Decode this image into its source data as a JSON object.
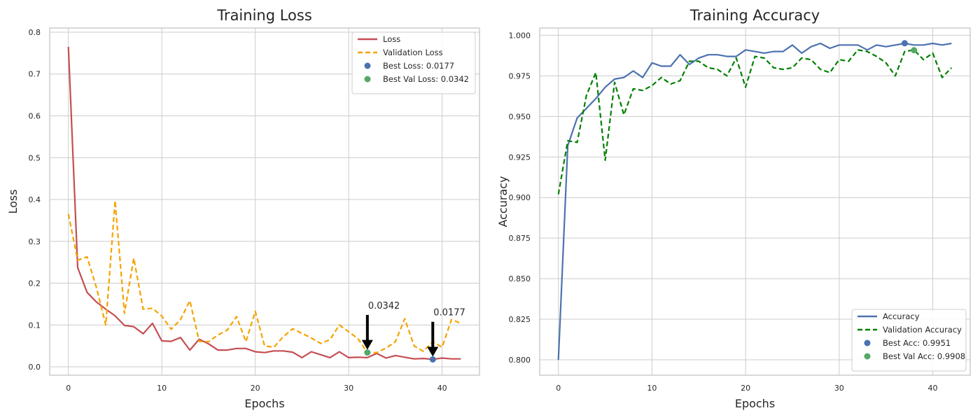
{
  "chart_data": [
    {
      "type": "line",
      "title": "Training Loss",
      "xlabel": "Epochs",
      "ylabel": "Loss",
      "xlim": [
        -2,
        44
      ],
      "ylim": [
        -0.02,
        0.81
      ],
      "xticks": [
        0,
        10,
        20,
        30,
        40
      ],
      "yticks": [
        0.0,
        0.1,
        0.2,
        0.3,
        0.4,
        0.5,
        0.6,
        0.7,
        0.8
      ],
      "ytick_decimals": 1,
      "grid": true,
      "legend_position": "top-right",
      "series": [
        {
          "name": "Loss",
          "color": "#c44e52",
          "style": "solid",
          "x": [
            0,
            1,
            2,
            3,
            4,
            5,
            6,
            7,
            8,
            9,
            10,
            11,
            12,
            13,
            14,
            15,
            16,
            17,
            18,
            19,
            20,
            21,
            22,
            23,
            24,
            25,
            26,
            27,
            28,
            29,
            30,
            31,
            32,
            33,
            34,
            35,
            36,
            37,
            38,
            39,
            40,
            41,
            42
          ],
          "values": [
            0.765,
            0.237,
            0.178,
            0.155,
            0.138,
            0.122,
            0.099,
            0.096,
            0.079,
            0.104,
            0.062,
            0.061,
            0.07,
            0.04,
            0.066,
            0.055,
            0.04,
            0.04,
            0.044,
            0.044,
            0.036,
            0.034,
            0.038,
            0.038,
            0.035,
            0.022,
            0.036,
            0.029,
            0.022,
            0.036,
            0.022,
            0.023,
            0.022,
            0.032,
            0.021,
            0.027,
            0.023,
            0.019,
            0.02,
            0.018,
            0.021,
            0.019,
            0.019
          ]
        },
        {
          "name": "Validation Loss",
          "color": "#f5a300",
          "style": "dashed",
          "x": [
            0,
            1,
            2,
            3,
            4,
            5,
            6,
            7,
            8,
            9,
            10,
            11,
            12,
            13,
            14,
            15,
            16,
            17,
            18,
            19,
            20,
            21,
            22,
            23,
            24,
            25,
            26,
            27,
            28,
            29,
            30,
            31,
            32,
            33,
            34,
            35,
            36,
            37,
            38,
            39,
            40,
            41,
            42
          ],
          "values": [
            0.365,
            0.255,
            0.263,
            0.19,
            0.1,
            0.397,
            0.128,
            0.26,
            0.138,
            0.14,
            0.121,
            0.09,
            0.113,
            0.158,
            0.061,
            0.06,
            0.076,
            0.088,
            0.12,
            0.06,
            0.133,
            0.05,
            0.047,
            0.072,
            0.091,
            0.08,
            0.069,
            0.056,
            0.065,
            0.1,
            0.084,
            0.067,
            0.034,
            0.034,
            0.045,
            0.06,
            0.115,
            0.05,
            0.037,
            0.06,
            0.047,
            0.113,
            0.104
          ]
        }
      ],
      "points": [
        {
          "name": "Best Loss: 0.0177",
          "x": 39,
          "y": 0.0177,
          "color": "#4c72b0"
        },
        {
          "name": "Best Val Loss: 0.0342",
          "x": 32,
          "y": 0.0342,
          "color": "#55a868"
        }
      ],
      "annotations": [
        {
          "text": "0.0177",
          "x": 39,
          "y": 0.0177,
          "text_x": 39,
          "text_y": 0.1177
        },
        {
          "text": "0.0342",
          "x": 32,
          "y": 0.0342,
          "text_x": 32,
          "text_y": 0.1342
        }
      ]
    },
    {
      "type": "line",
      "title": "Training Accuracy",
      "xlabel": "Epochs",
      "ylabel": "Accuracy",
      "xlim": [
        -2,
        44
      ],
      "ylim": [
        0.7905,
        1.0045
      ],
      "xticks": [
        0,
        10,
        20,
        30,
        40
      ],
      "yticks": [
        0.8,
        0.825,
        0.85,
        0.875,
        0.9,
        0.925,
        0.95,
        0.975,
        1.0
      ],
      "ytick_decimals": 3,
      "grid": true,
      "legend_position": "bottom-right",
      "series": [
        {
          "name": "Accuracy",
          "color": "#4c72b0",
          "style": "solid",
          "x": [
            0,
            1,
            2,
            3,
            4,
            5,
            6,
            7,
            8,
            9,
            10,
            11,
            12,
            13,
            14,
            15,
            16,
            17,
            18,
            19,
            20,
            21,
            22,
            23,
            24,
            25,
            26,
            27,
            28,
            29,
            30,
            31,
            32,
            33,
            34,
            35,
            36,
            37,
            38,
            39,
            40,
            41,
            42
          ],
          "values": [
            0.8,
            0.932,
            0.949,
            0.955,
            0.961,
            0.968,
            0.973,
            0.974,
            0.978,
            0.974,
            0.983,
            0.981,
            0.981,
            0.988,
            0.982,
            0.986,
            0.988,
            0.988,
            0.987,
            0.987,
            0.991,
            0.99,
            0.989,
            0.99,
            0.99,
            0.994,
            0.989,
            0.993,
            0.995,
            0.992,
            0.994,
            0.994,
            0.994,
            0.991,
            0.994,
            0.993,
            0.994,
            0.995,
            0.994,
            0.994,
            0.995,
            0.994,
            0.995
          ]
        },
        {
          "name": "Validation Accuracy",
          "color": "#008000",
          "style": "dashed",
          "x": [
            0,
            1,
            2,
            3,
            4,
            5,
            6,
            7,
            8,
            9,
            10,
            11,
            12,
            13,
            14,
            15,
            16,
            17,
            18,
            19,
            20,
            21,
            22,
            23,
            24,
            25,
            26,
            27,
            28,
            29,
            30,
            31,
            32,
            33,
            34,
            35,
            36,
            37,
            38,
            39,
            40,
            41,
            42
          ],
          "values": [
            0.902,
            0.935,
            0.934,
            0.963,
            0.977,
            0.923,
            0.971,
            0.951,
            0.967,
            0.966,
            0.969,
            0.974,
            0.97,
            0.972,
            0.984,
            0.984,
            0.98,
            0.979,
            0.975,
            0.986,
            0.968,
            0.987,
            0.986,
            0.98,
            0.979,
            0.98,
            0.986,
            0.985,
            0.979,
            0.977,
            0.985,
            0.984,
            0.991,
            0.99,
            0.987,
            0.983,
            0.975,
            0.99,
            0.991,
            0.985,
            0.989,
            0.974,
            0.98
          ]
        }
      ],
      "points": [
        {
          "name": "Best Acc: 0.9951",
          "x": 37,
          "y": 0.9951,
          "color": "#4c72b0"
        },
        {
          "name": "Best Val Acc: 0.9908",
          "x": 38,
          "y": 0.9908,
          "color": "#55a868"
        }
      ],
      "annotations": []
    }
  ]
}
